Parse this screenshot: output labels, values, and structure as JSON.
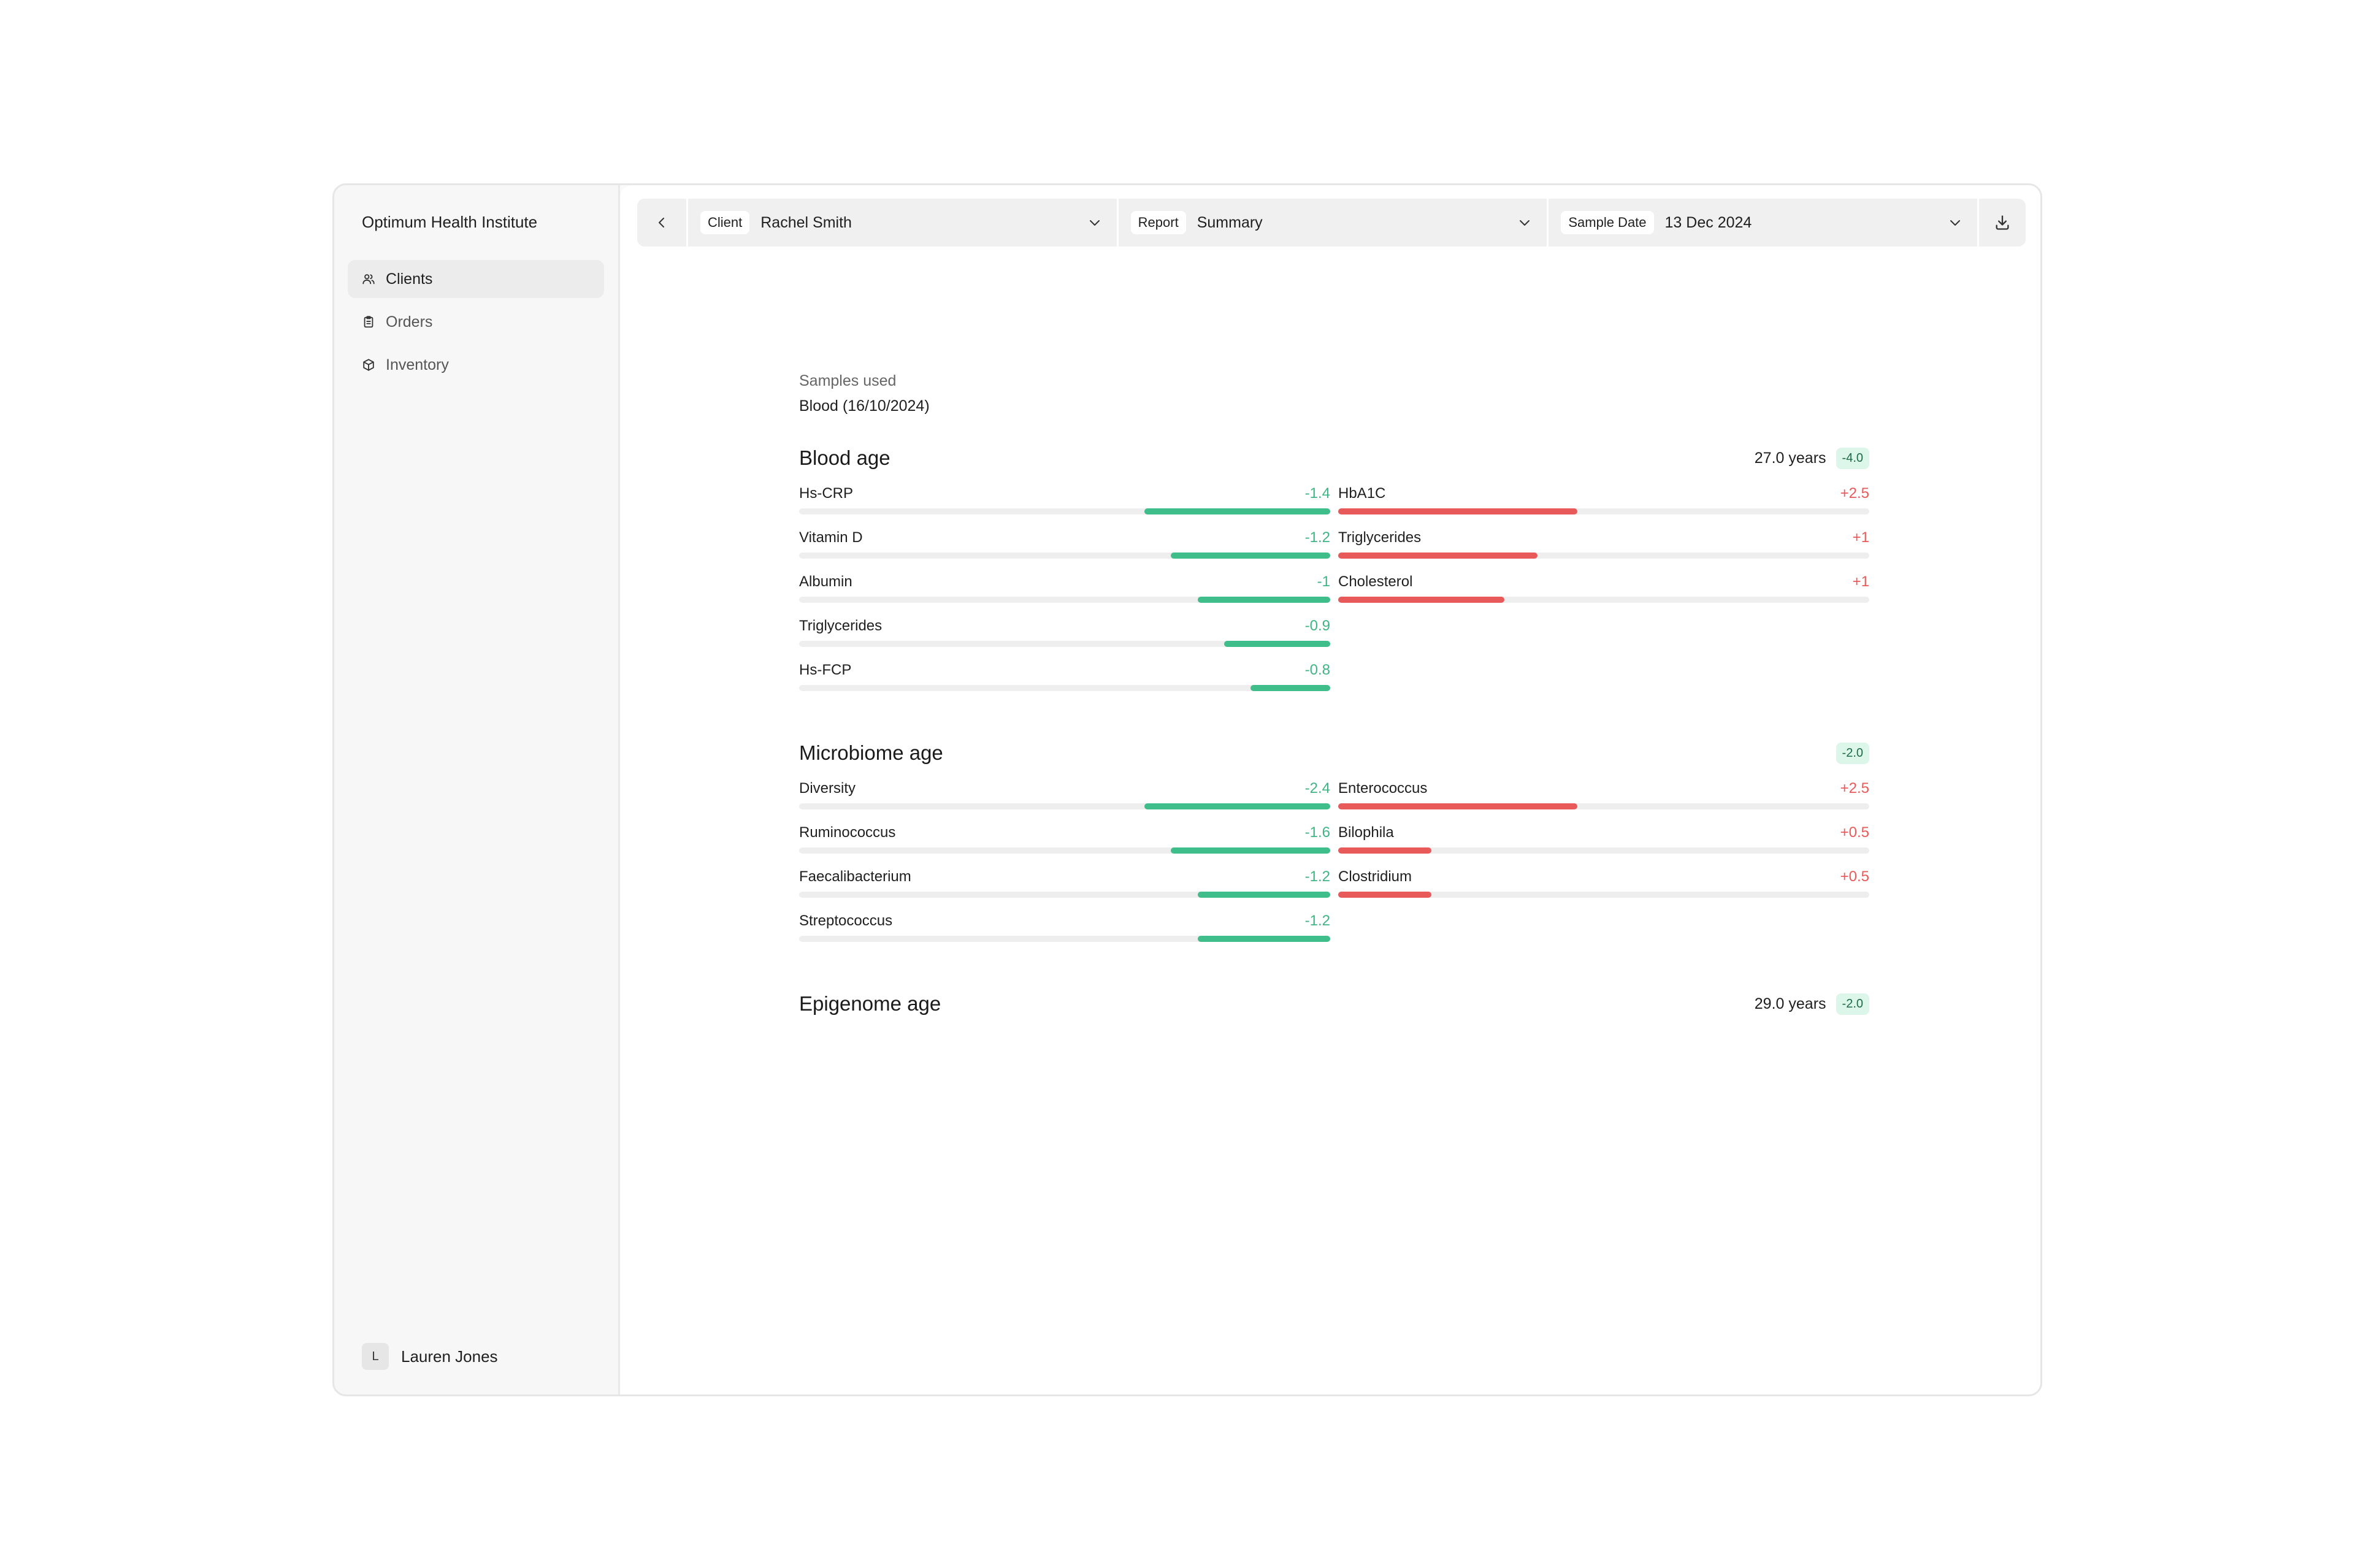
{
  "org_name": "Optimum Health Institute",
  "nav": [
    {
      "label": "Clients",
      "icon": "users-icon",
      "active": true
    },
    {
      "label": "Orders",
      "icon": "clipboard-icon",
      "active": false
    },
    {
      "label": "Inventory",
      "icon": "box-icon",
      "active": false
    }
  ],
  "user": {
    "initial": "L",
    "name": "Lauren Jones"
  },
  "toolbar": {
    "client": {
      "tag": "Client",
      "value": "Rachel Smith"
    },
    "report": {
      "tag": "Report",
      "value": "Summary"
    },
    "sample_date": {
      "tag": "Sample Date",
      "value": "13 Dec 2024"
    }
  },
  "samples": {
    "label": "Samples used",
    "value": "Blood (16/10/2024)"
  },
  "sections": [
    {
      "title": "Blood age",
      "years": "27.0 years",
      "delta": "-4.0",
      "left": [
        {
          "name": "Hs-CRP",
          "value": "-1.4",
          "level": 1.4
        },
        {
          "name": "Vitamin D",
          "value": "-1.2",
          "level": 1.2
        },
        {
          "name": "Albumin",
          "value": "-1",
          "level": 1.0
        },
        {
          "name": "Triglycerides",
          "value": "-0.9",
          "level": 0.8
        },
        {
          "name": "Hs-FCP",
          "value": "-0.8",
          "level": 0.6
        }
      ],
      "right": [
        {
          "name": "HbA1C",
          "value": "+2.5",
          "level": 1.8
        },
        {
          "name": "Triglycerides",
          "value": "+1",
          "level": 1.5
        },
        {
          "name": "Cholesterol",
          "value": "+1",
          "level": 1.25
        }
      ]
    },
    {
      "title": "Microbiome age",
      "years": "",
      "delta": "-2.0",
      "left": [
        {
          "name": "Diversity",
          "value": "-2.4",
          "level": 1.4
        },
        {
          "name": "Ruminococcus",
          "value": "-1.6",
          "level": 1.2
        },
        {
          "name": "Faecalibacterium",
          "value": "-1.2",
          "level": 1.0
        },
        {
          "name": "Streptococcus",
          "value": "-1.2",
          "level": 1.0
        }
      ],
      "right": [
        {
          "name": "Enterococcus",
          "value": "+2.5",
          "level": 1.8
        },
        {
          "name": "Bilophila",
          "value": "+0.5",
          "level": 0.7
        },
        {
          "name": "Clostridium",
          "value": "+0.5",
          "level": 0.7
        }
      ]
    },
    {
      "title": "Epigenome age",
      "years": "29.0 years",
      "delta": "-2.0",
      "left": [],
      "right": []
    }
  ],
  "scale_max": 4.0,
  "colors": {
    "negative": "#3fbd8a",
    "positive": "#e85a5a",
    "pill_bg": "#ddf6ea"
  }
}
